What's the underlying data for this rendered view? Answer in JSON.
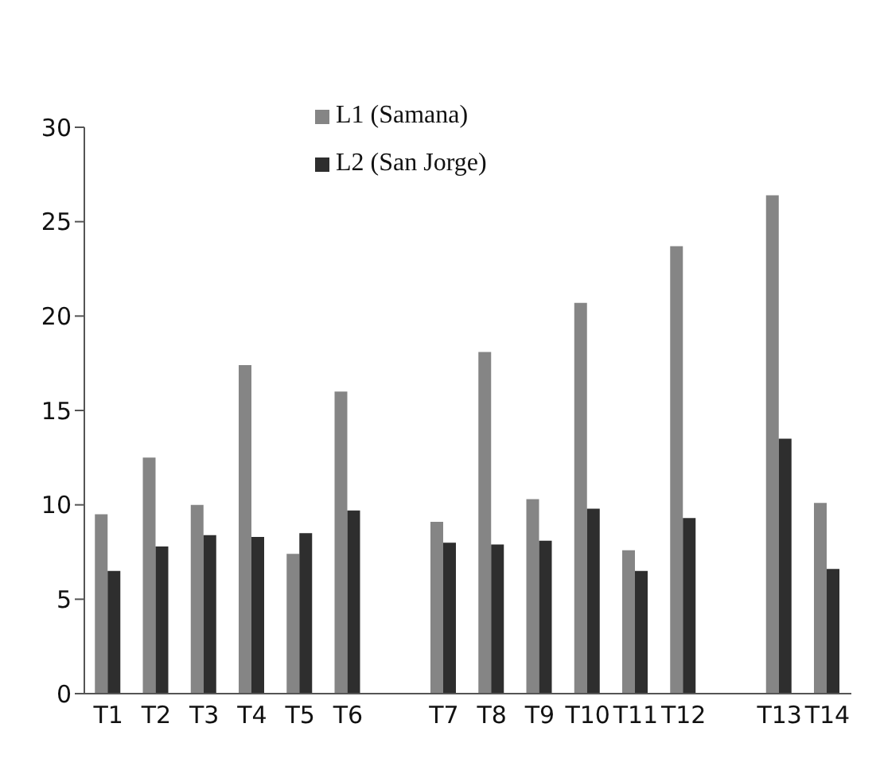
{
  "chart_data": {
    "type": "bar",
    "categories": [
      "T1",
      "T2",
      "T3",
      "T4",
      "T5",
      "T6",
      null,
      "T7",
      "T8",
      "T9",
      "T10",
      "T11",
      "T12",
      null,
      "T13",
      "T14"
    ],
    "series": [
      {
        "name": "L1 (Samana)",
        "color": "#858585",
        "values": [
          9.5,
          12.5,
          10,
          17.4,
          7.4,
          16,
          null,
          9.1,
          18.1,
          10.3,
          20.7,
          7.6,
          23.7,
          null,
          26.4,
          10.1
        ]
      },
      {
        "name": "L2 (San Jorge)",
        "color": "#2e2e2e",
        "values": [
          6.5,
          7.8,
          8.4,
          8.3,
          8.5,
          9.7,
          null,
          8,
          7.9,
          8.1,
          9.8,
          6.5,
          9.3,
          null,
          13.5,
          6.6
        ]
      }
    ],
    "ylim": [
      0,
      30
    ],
    "yticks": [
      0,
      5,
      10,
      15,
      20,
      25,
      30
    ],
    "grid": false,
    "legend": "top"
  }
}
